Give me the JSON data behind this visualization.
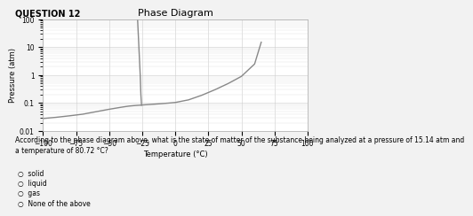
{
  "title": "Phase Diagram",
  "xlabel": "Temperature (°C)",
  "ylabel": "Pressure (atm)",
  "xlim": [
    -100,
    100
  ],
  "ylim_log": [
    0.01,
    100
  ],
  "background_color": "#f2f2f2",
  "plot_bg_color": "#ffffff",
  "line_color": "#888888",
  "line_width": 1.0,
  "title_fontsize": 8,
  "label_fontsize": 6,
  "tick_fontsize": 5.5,
  "question_header": "QUESTION 12",
  "header_fontsize": 7,
  "fusion_curve": {
    "x": [
      -28.5,
      -27.5,
      -26.5,
      -26.0,
      -25.5
    ],
    "y": [
      100,
      10,
      1,
      0.2,
      0.085
    ]
  },
  "sublimation_curve": {
    "x": [
      -100,
      -90,
      -80,
      -70,
      -60,
      -50,
      -40,
      -35,
      -30,
      -25.5
    ],
    "y": [
      0.028,
      0.031,
      0.035,
      0.04,
      0.049,
      0.06,
      0.072,
      0.078,
      0.082,
      0.085
    ]
  },
  "vaporization_curve": {
    "x": [
      -25.5,
      -15,
      -5,
      0,
      10,
      20,
      30,
      40,
      50,
      60,
      65
    ],
    "y": [
      0.085,
      0.092,
      0.1,
      0.105,
      0.13,
      0.19,
      0.3,
      0.5,
      0.9,
      2.5,
      15
    ]
  },
  "question_text": "According to the phase diagram above, what is the state of matter of the substance being analyzed at a pressure of 15.14 atm and\na temperature of 80.72 °C?",
  "choices": [
    "solid",
    "liquid",
    "gas",
    "None of the above"
  ],
  "question_fontsize": 5.5,
  "choice_fontsize": 5.5
}
